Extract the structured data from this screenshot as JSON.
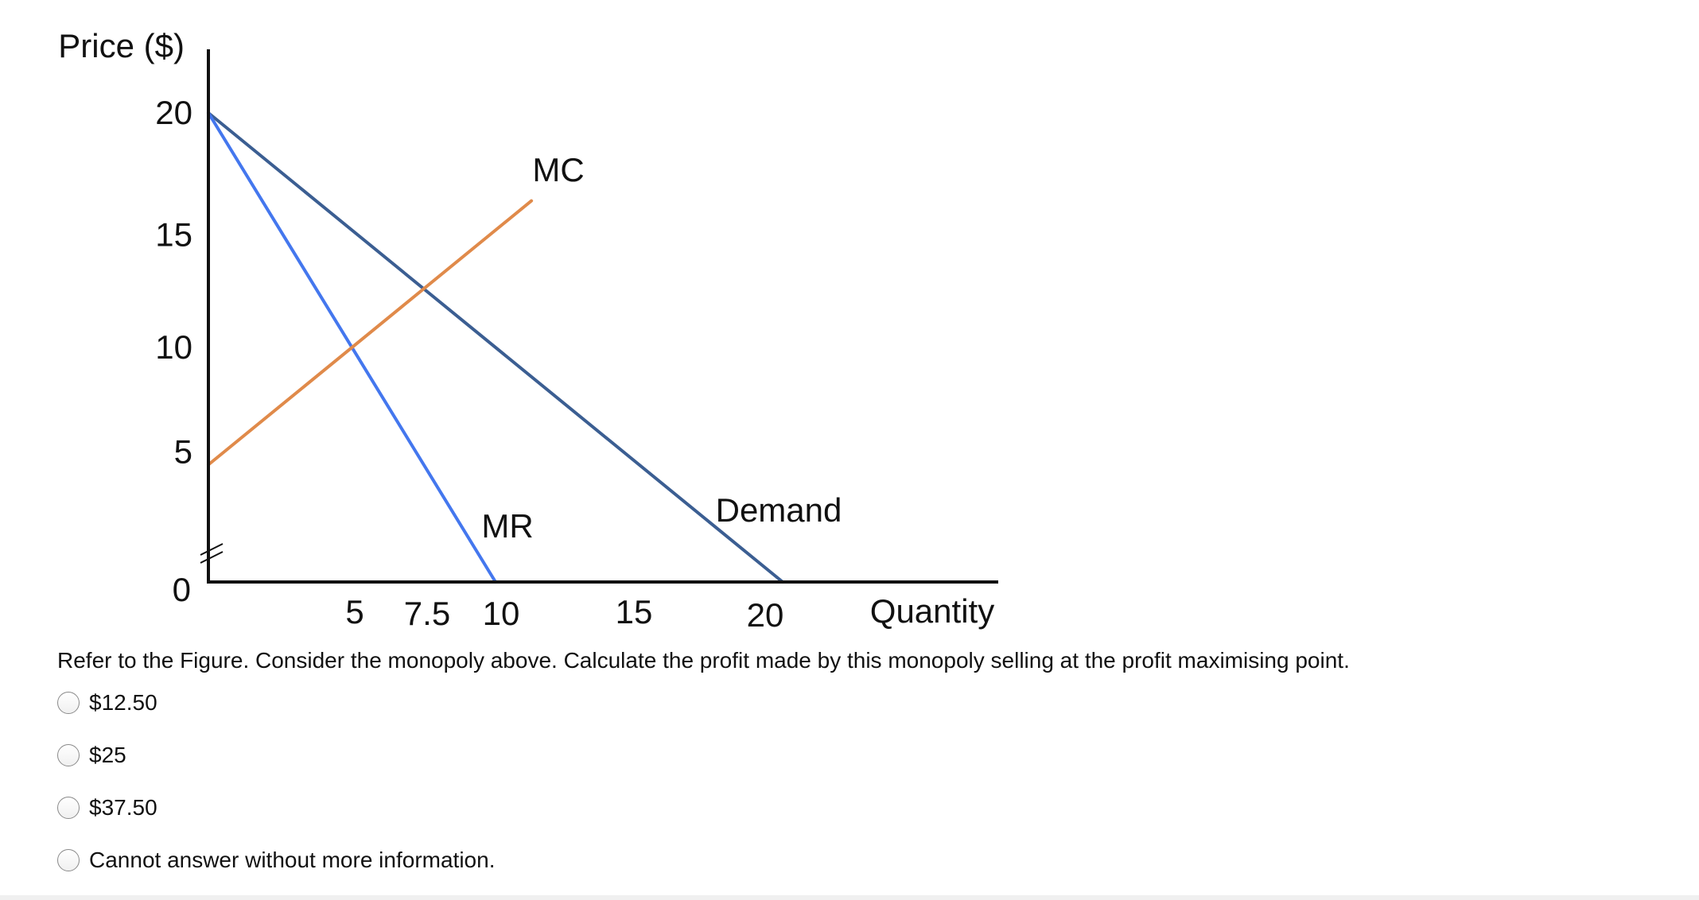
{
  "chart_data": {
    "type": "line",
    "ylabel": "Price ($)",
    "xlabel": "Quantity",
    "xlim": [
      0,
      20
    ],
    "ylim": [
      0,
      20
    ],
    "x_ticks": [
      5,
      7.5,
      10,
      15,
      20
    ],
    "x_tick_labels": [
      "5",
      "7.5",
      "10",
      "15",
      "20"
    ],
    "y_ticks": [
      5,
      10,
      15,
      20
    ],
    "y_tick_labels": [
      "5",
      "10",
      "15",
      "20"
    ],
    "origin_label": "0",
    "axis_break": true,
    "series": [
      {
        "name": "Demand",
        "color": "#3b5e92",
        "points": [
          [
            0,
            20
          ],
          [
            20,
            0
          ]
        ]
      },
      {
        "name": "MR",
        "color": "#4477ee",
        "points": [
          [
            0,
            20
          ],
          [
            10,
            0
          ]
        ]
      },
      {
        "name": "MC",
        "color": "#e08a4a",
        "points": [
          [
            0,
            5
          ],
          [
            11.25,
            16.25
          ]
        ]
      }
    ]
  },
  "question": {
    "text": "Refer to the Figure. Consider the monopoly above. Calculate the profit made by this monopoly selling at the profit maximising point.",
    "options": [
      {
        "label": "$12.50"
      },
      {
        "label": "$25"
      },
      {
        "label": "$37.50"
      },
      {
        "label": "Cannot answer without more information."
      }
    ]
  }
}
